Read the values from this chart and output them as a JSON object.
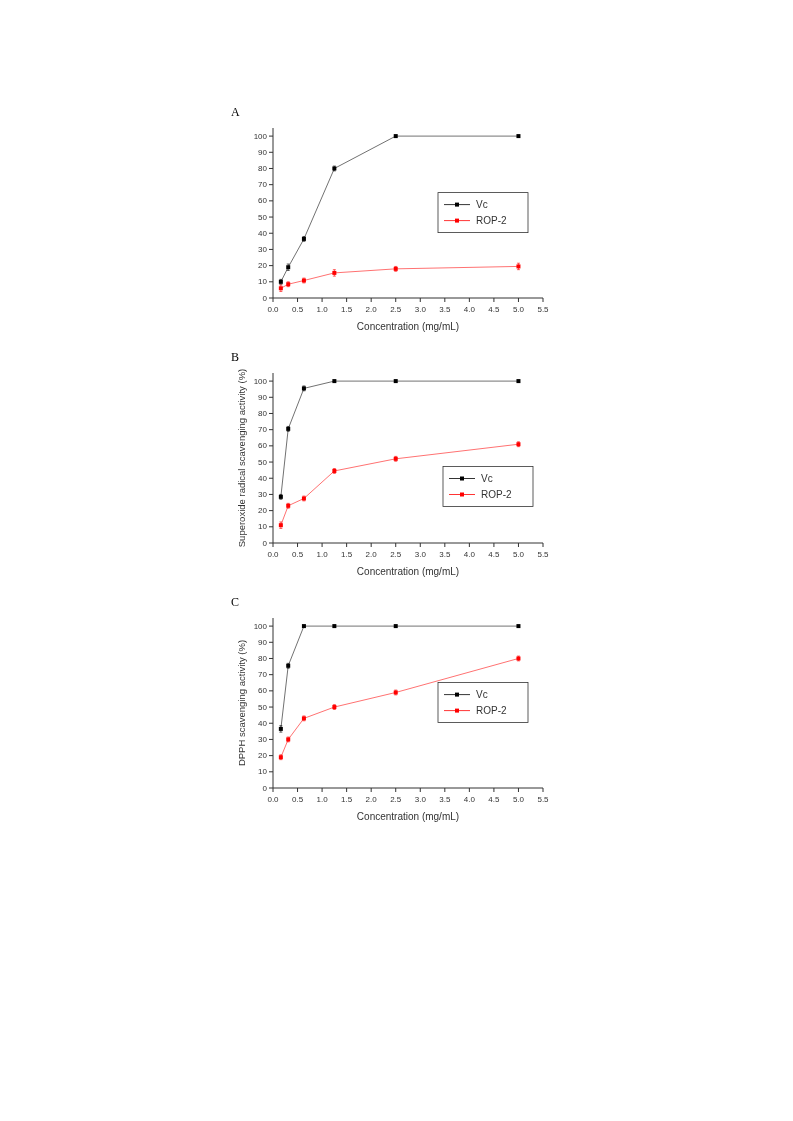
{
  "chart_data": [
    {
      "type": "line",
      "title": "A",
      "xlabel": "Concentration (mg/mL)",
      "x": [
        0.16,
        0.31,
        0.63,
        1.25,
        2.5,
        5
      ],
      "xlim": [
        0,
        5.5
      ],
      "xticks": [
        {
          "value": 0,
          "label": "0.0"
        },
        0.5,
        {
          "value": 1,
          "label": "1.0"
        },
        1.5,
        {
          "value": 2,
          "label": "2.0"
        },
        2.5,
        {
          "value": 3,
          "label": "3.0"
        },
        3.5,
        {
          "value": 4,
          "label": "4.0"
        },
        4.5,
        {
          "value": 5,
          "label": "5.0"
        },
        5.5
      ],
      "ylim": [
        0,
        105
      ],
      "yticks": [
        0,
        10,
        20,
        30,
        40,
        50,
        60,
        70,
        80,
        90,
        100
      ],
      "legend": "right",
      "marker": "square",
      "grid": false,
      "series": [
        {
          "name": "Vc",
          "color": "#000000",
          "values": [
            10,
            19,
            36.5,
            80,
            100,
            100
          ],
          "errors": [
            1.5,
            2,
            1.5,
            1.5,
            null,
            null
          ]
        },
        {
          "name": "ROP-2",
          "color": "#ff0000",
          "values": [
            6,
            8.5,
            10.8,
            15.5,
            18,
            19.5
          ],
          "errors": [
            2,
            1.5,
            1.5,
            2,
            1.5,
            2
          ]
        }
      ]
    },
    {
      "type": "line",
      "title": "B",
      "xlabel": "Concentration (mg/mL)",
      "ylabel": "Superoxide radical scavenging activity (%)",
      "x": [
        0.16,
        0.31,
        0.63,
        1.25,
        2.5,
        5
      ],
      "xlim": [
        0,
        5.5
      ],
      "xticks": [
        {
          "value": 0,
          "label": "0.0"
        },
        0.5,
        {
          "value": 1,
          "label": "1.0"
        },
        1.5,
        {
          "value": 2,
          "label": "2.0"
        },
        2.5,
        {
          "value": 3,
          "label": "3.0"
        },
        3.5,
        {
          "value": 4,
          "label": "4.0"
        },
        4.5,
        {
          "value": 5,
          "label": "5.0"
        },
        5.5
      ],
      "ylim": [
        0,
        105
      ],
      "yticks": [
        0,
        10,
        20,
        30,
        40,
        50,
        60,
        70,
        80,
        90,
        100
      ],
      "legend": "bottom right",
      "marker": "square",
      "grid": false,
      "series": [
        {
          "name": "Vc",
          "color": "#000000",
          "values": [
            28.5,
            70.5,
            95.5,
            100,
            100,
            100
          ],
          "errors": [
            1.5,
            1.5,
            1.5,
            null,
            null,
            null
          ]
        },
        {
          "name": "ROP-2",
          "color": "#ff0000",
          "values": [
            11,
            23,
            27.5,
            44.5,
            52,
            61
          ],
          "errors": [
            2,
            1.5,
            1.5,
            1.5,
            1.5,
            1.5
          ]
        }
      ]
    },
    {
      "type": "line",
      "title": "C",
      "xlabel": "Concentration (mg/mL)",
      "ylabel": "DPPH scavenging activity (%)",
      "x": [
        0.16,
        0.31,
        0.63,
        1.25,
        2.5,
        5
      ],
      "xlim": [
        0,
        5.5
      ],
      "xticks": [
        {
          "value": 0,
          "label": "0.0"
        },
        0.5,
        {
          "value": 1,
          "label": "1.0"
        },
        1.5,
        {
          "value": 2,
          "label": "2.0"
        },
        2.5,
        {
          "value": 3,
          "label": "3.0"
        },
        3.5,
        {
          "value": 4,
          "label": "4.0"
        },
        4.5,
        {
          "value": 5,
          "label": "5.0"
        },
        5.5
      ],
      "ylim": [
        0,
        105
      ],
      "yticks": [
        0,
        10,
        20,
        30,
        40,
        50,
        60,
        70,
        80,
        90,
        100
      ],
      "legend": "right",
      "marker": "square",
      "grid": false,
      "series": [
        {
          "name": "Vc",
          "color": "#000000",
          "values": [
            36.5,
            75.5,
            100,
            100,
            100,
            100
          ],
          "errors": [
            2,
            1.5,
            null,
            null,
            null,
            null
          ]
        },
        {
          "name": "ROP-2",
          "color": "#ff0000",
          "values": [
            19,
            30,
            43,
            50,
            59,
            80
          ],
          "errors": [
            1.5,
            1.5,
            1.5,
            1.5,
            1.5,
            1.5
          ]
        }
      ]
    }
  ]
}
